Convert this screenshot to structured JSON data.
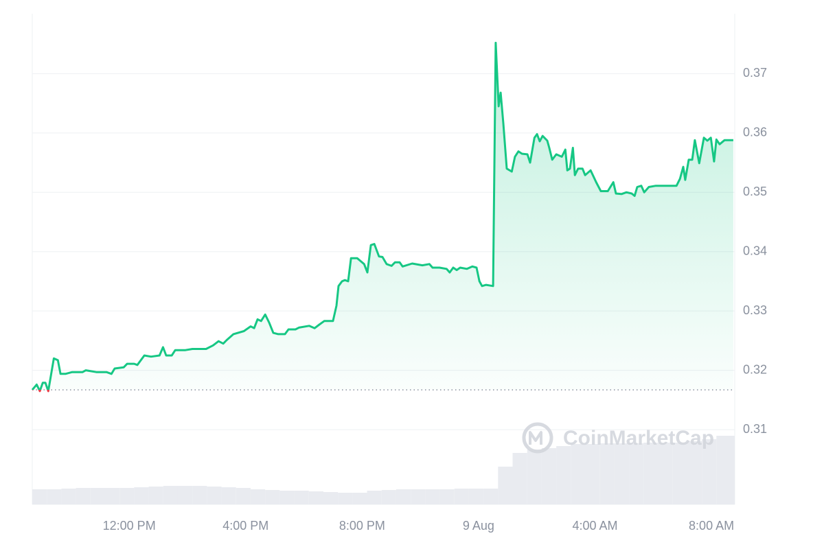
{
  "chart_data": {
    "type": "line",
    "x": [
      8.67,
      8.82,
      8.93,
      9.03,
      9.12,
      9.22,
      9.41,
      9.55,
      9.64,
      9.81,
      10.04,
      10.4,
      10.51,
      10.87,
      11.22,
      11.39,
      11.5,
      11.81,
      11.93,
      12.17,
      12.28,
      12.52,
      12.75,
      13.04,
      13.16,
      13.27,
      13.46,
      13.58,
      13.93,
      14.17,
      14.64,
      14.88,
      15.07,
      15.23,
      15.35,
      15.58,
      15.94,
      16.17,
      16.29,
      16.41,
      16.53,
      16.67,
      16.81,
      16.95,
      17.12,
      17.35,
      17.47,
      17.71,
      17.83,
      18.18,
      18.37,
      18.53,
      18.7,
      19.0,
      19.12,
      19.19,
      19.31,
      19.41,
      19.52,
      19.62,
      19.83,
      19.95,
      20.07,
      20.18,
      20.3,
      20.42,
      20.58,
      20.7,
      20.84,
      21.01,
      21.13,
      21.29,
      21.39,
      21.72,
      22.07,
      22.31,
      22.42,
      22.66,
      22.9,
      23.01,
      23.13,
      23.25,
      23.37,
      23.6,
      23.79,
      23.93,
      24.03,
      24.12,
      24.26,
      24.5,
      24.59,
      24.69,
      24.76,
      24.85,
      24.97,
      25.14,
      25.25,
      25.37,
      25.49,
      25.68,
      25.77,
      25.92,
      26.01,
      26.1,
      26.2,
      26.36,
      26.43,
      26.53,
      26.67,
      26.86,
      26.98,
      27.05,
      27.14,
      27.24,
      27.31,
      27.42,
      27.57,
      27.66,
      27.85,
      28.04,
      28.2,
      28.44,
      28.63,
      28.72,
      28.91,
      29.08,
      29.26,
      29.36,
      29.45,
      29.59,
      29.69,
      29.85,
      30.09,
      30.8,
      30.92,
      31.03,
      31.1,
      31.22,
      31.34,
      31.43,
      31.58,
      31.74,
      31.86,
      31.98,
      32.09,
      32.17,
      32.28,
      32.45,
      32.57,
      32.75
    ],
    "values": [
      0.3167,
      0.3176,
      0.3165,
      0.3179,
      0.3179,
      0.3165,
      0.322,
      0.3217,
      0.3194,
      0.3194,
      0.3197,
      0.3197,
      0.32,
      0.3197,
      0.3197,
      0.3194,
      0.3203,
      0.3205,
      0.3211,
      0.3211,
      0.3209,
      0.3225,
      0.3223,
      0.3225,
      0.3239,
      0.3225,
      0.3225,
      0.3234,
      0.3234,
      0.3236,
      0.3236,
      0.3242,
      0.3249,
      0.3245,
      0.3251,
      0.3261,
      0.3266,
      0.3274,
      0.3271,
      0.3286,
      0.3283,
      0.3294,
      0.328,
      0.3263,
      0.3261,
      0.3261,
      0.3269,
      0.3269,
      0.3272,
      0.3275,
      0.3271,
      0.3277,
      0.3283,
      0.3283,
      0.3309,
      0.3342,
      0.335,
      0.3352,
      0.335,
      0.3389,
      0.3389,
      0.3384,
      0.3379,
      0.3365,
      0.3411,
      0.3413,
      0.3392,
      0.3391,
      0.3379,
      0.3376,
      0.3382,
      0.3382,
      0.3375,
      0.338,
      0.3377,
      0.3379,
      0.3373,
      0.3373,
      0.3371,
      0.3365,
      0.3373,
      0.3369,
      0.3373,
      0.3371,
      0.3375,
      0.3373,
      0.335,
      0.3342,
      0.3344,
      0.3342,
      0.3752,
      0.3645,
      0.3668,
      0.3616,
      0.354,
      0.3535,
      0.356,
      0.3569,
      0.3565,
      0.3564,
      0.355,
      0.3592,
      0.3598,
      0.3586,
      0.3595,
      0.3587,
      0.3575,
      0.3555,
      0.3564,
      0.356,
      0.3572,
      0.3537,
      0.354,
      0.3575,
      0.3529,
      0.354,
      0.354,
      0.3529,
      0.3537,
      0.3517,
      0.3502,
      0.3502,
      0.3517,
      0.3498,
      0.3497,
      0.35,
      0.3498,
      0.3494,
      0.3509,
      0.3511,
      0.35,
      0.3509,
      0.3511,
      0.3511,
      0.3523,
      0.3543,
      0.3521,
      0.3555,
      0.3555,
      0.3588,
      0.3549,
      0.3592,
      0.3587,
      0.3592,
      0.3552,
      0.3589,
      0.3581,
      0.3588,
      0.3588,
      0.3588
    ],
    "color": "#16c784",
    "below_color": "#ea3943",
    "reference": 0.3167,
    "volume": {
      "color": "#e9ebf0",
      "x": [
        8.67,
        9.17,
        9.67,
        10.17,
        10.67,
        11.17,
        11.67,
        12.17,
        12.67,
        13.17,
        13.67,
        14.17,
        14.67,
        15.17,
        15.67,
        16.17,
        16.67,
        17.17,
        17.67,
        18.17,
        18.67,
        19.17,
        19.67,
        20.17,
        20.67,
        21.17,
        21.67,
        22.17,
        22.67,
        23.17,
        23.67,
        24.17,
        24.67,
        25.17,
        25.67,
        26.17,
        26.67,
        27.17,
        27.67,
        28.17,
        28.67,
        29.17,
        29.67,
        30.17,
        30.67,
        31.17,
        31.67,
        32.17,
        32.67
      ],
      "values": [
        22,
        22,
        23,
        24,
        24,
        24,
        24,
        25,
        26,
        27,
        27,
        27,
        26,
        25,
        24,
        22,
        21,
        20,
        20,
        19,
        18,
        17,
        17,
        20,
        21,
        22,
        22,
        22,
        22,
        23,
        23,
        23,
        55,
        75,
        80,
        82,
        85,
        88,
        88,
        89,
        89,
        89,
        90,
        90,
        90,
        92,
        95,
        100,
        100
      ]
    },
    "xlim": [
      8.67,
      32.8
    ],
    "xticks": [
      {
        "value": 12,
        "label": "12:00 PM"
      },
      {
        "value": 16,
        "label": "4:00 PM"
      },
      {
        "value": 20,
        "label": "8:00 PM"
      },
      {
        "value": 24,
        "label": "9 Aug"
      },
      {
        "value": 28,
        "label": "4:00 AM"
      },
      {
        "value": 32,
        "label": "8:00 AM"
      }
    ],
    "ylim": [
      0.2974,
      0.3801
    ],
    "yticks": [
      0.31,
      0.32,
      0.33,
      0.34,
      0.35,
      0.36,
      0.37
    ],
    "grid": true,
    "watermark": "CoinMarketCap"
  }
}
